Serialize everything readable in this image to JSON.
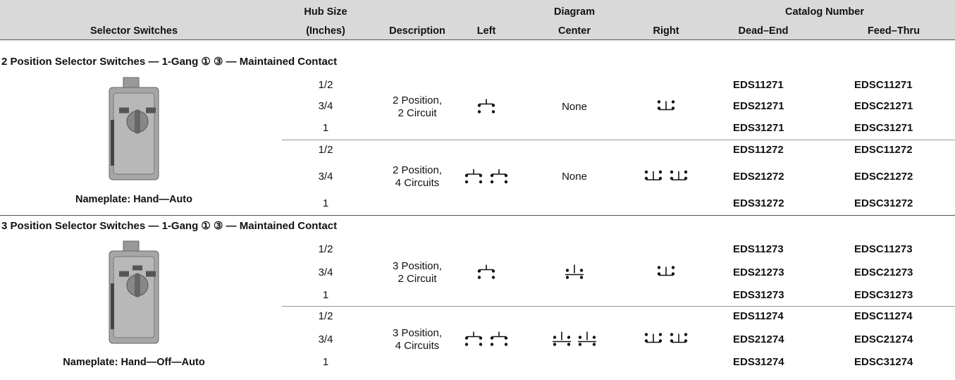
{
  "header": {
    "selector_switches": "Selector Switches",
    "hub_size": [
      "Hub Size",
      "(Inches)"
    ],
    "description": "Description",
    "left": "Left",
    "diagram_center": [
      "Diagram",
      "Center"
    ],
    "right": "Right",
    "catalog_number": "Catalog Number",
    "dead_end": "Dead–End",
    "feed_thru": "Feed–Thru"
  },
  "sections": [
    {
      "title": "2 Position Selector Switches — 1-Gang ① ③ — Maintained Contact",
      "nameplate": "Nameplate: Hand—Auto",
      "groups": [
        {
          "description": [
            "2 Position,",
            "2 Circuit"
          ],
          "center": "None",
          "rows": [
            {
              "hub": "1/2",
              "dead_end": "EDS11271",
              "feed_thru": "EDSC11271"
            },
            {
              "hub": "3/4",
              "dead_end": "EDS21271",
              "feed_thru": "EDSC21271"
            },
            {
              "hub": "1",
              "dead_end": "EDS31271",
              "feed_thru": "EDSC31271"
            }
          ]
        },
        {
          "description": [
            "2 Position,",
            "4 Circuits"
          ],
          "center": "None",
          "rows": [
            {
              "hub": "1/2",
              "dead_end": "EDS11272",
              "feed_thru": "EDSC11272"
            },
            {
              "hub": "3/4",
              "dead_end": "EDS21272",
              "feed_thru": "EDSC21272"
            },
            {
              "hub": "1",
              "dead_end": "EDS31272",
              "feed_thru": "EDSC31272"
            }
          ]
        }
      ]
    },
    {
      "title": "3 Position Selector Switches — 1-Gang ① ③ — Maintained Contact",
      "nameplate": "Nameplate: Hand—Off—Auto",
      "groups": [
        {
          "description": [
            "3 Position,",
            "2 Circuit"
          ],
          "rows": [
            {
              "hub": "1/2",
              "dead_end": "EDS11273",
              "feed_thru": "EDSC11273"
            },
            {
              "hub": "3/4",
              "dead_end": "EDS21273",
              "feed_thru": "EDSC21273"
            },
            {
              "hub": "1",
              "dead_end": "EDS31273",
              "feed_thru": "EDSC31273"
            }
          ]
        },
        {
          "description": [
            "3 Position,",
            "4 Circuits"
          ],
          "rows": [
            {
              "hub": "1/2",
              "dead_end": "EDS11274",
              "feed_thru": "EDSC11274"
            },
            {
              "hub": "3/4",
              "dead_end": "EDS21274",
              "feed_thru": "EDSC21274"
            },
            {
              "hub": "1",
              "dead_end": "EDS31274",
              "feed_thru": "EDSC31274"
            }
          ]
        }
      ]
    }
  ]
}
